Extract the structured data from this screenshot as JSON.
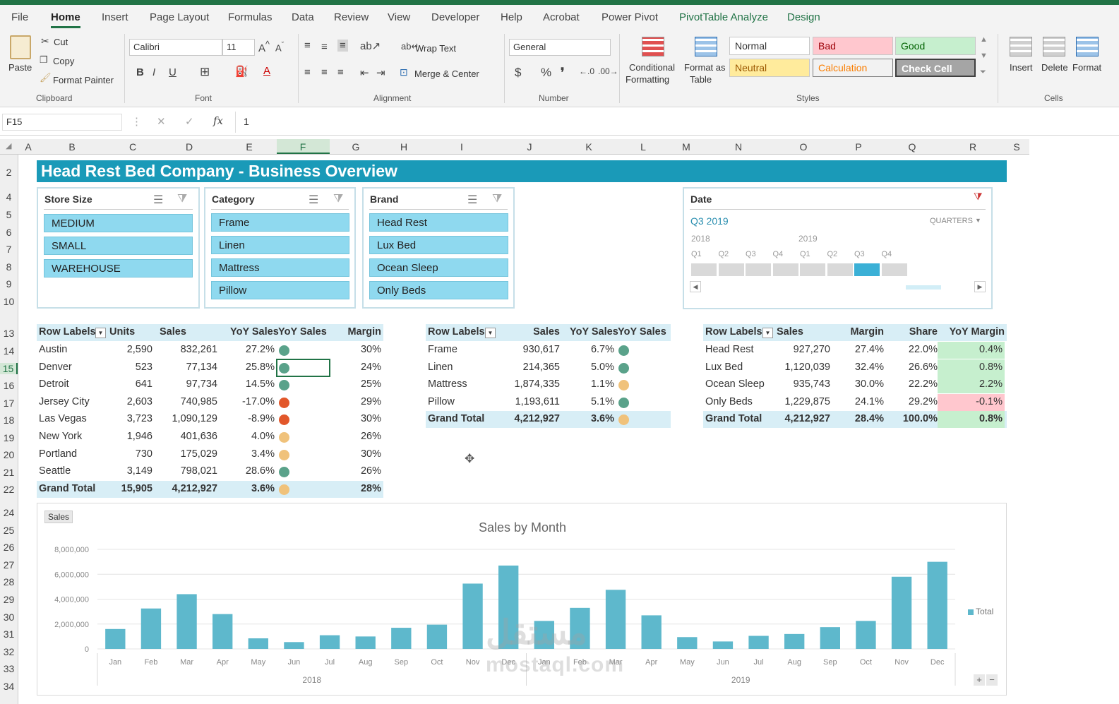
{
  "ribbon_tabs": [
    "File",
    "Home",
    "Insert",
    "Page Layout",
    "Formulas",
    "Data",
    "Review",
    "View",
    "Developer",
    "Help",
    "Acrobat",
    "Power Pivot",
    "PivotTable Analyze",
    "Design"
  ],
  "clipboard": {
    "paste": "Paste",
    "cut": "Cut",
    "copy": "Copy",
    "format_painter": "Format Painter",
    "label": "Clipboard"
  },
  "font": {
    "name": "Calibri",
    "size": "11",
    "label": "Font"
  },
  "alignment": {
    "wrap": "Wrap Text",
    "merge": "Merge & Center",
    "label": "Alignment"
  },
  "number": {
    "format": "General",
    "label": "Number"
  },
  "styles": {
    "conditional": "Conditional",
    "conditional2": "Formatting",
    "format_as": "Format as",
    "table": "Table",
    "normal": "Normal",
    "bad": "Bad",
    "good": "Good",
    "neutral": "Neutral",
    "calculation": "Calculation",
    "check_cell": "Check Cell",
    "label": "Styles"
  },
  "cells": {
    "insert": "Insert",
    "delete": "Delete",
    "format": "Format",
    "label": "Cells"
  },
  "formula": {
    "name_box": "F15",
    "fx": "fx",
    "value": "1"
  },
  "columns": [
    "A",
    "B",
    "C",
    "D",
    "E",
    "F",
    "G",
    "H",
    "I",
    "J",
    "K",
    "L",
    "M",
    "N",
    "O",
    "P",
    "Q",
    "R",
    "S"
  ],
  "rows": [
    "2",
    "4",
    "5",
    "6",
    "7",
    "8",
    "9",
    "10",
    "13",
    "14",
    "15",
    "16",
    "17",
    "18",
    "19",
    "20",
    "21",
    "22",
    "24",
    "25",
    "26",
    "27",
    "28",
    "29",
    "30",
    "31",
    "32",
    "33",
    "34"
  ],
  "title": "Head Rest Bed Company - Business Overview",
  "slicers": {
    "store": {
      "title": "Store Size",
      "items": [
        "MEDIUM",
        "SMALL",
        "WAREHOUSE"
      ]
    },
    "category": {
      "title": "Category",
      "items": [
        "Frame",
        "Linen",
        "Mattress",
        "Pillow"
      ]
    },
    "brand": {
      "title": "Brand",
      "items": [
        "Head Rest",
        "Lux Bed",
        "Ocean Sleep",
        "Only Beds"
      ]
    },
    "date": {
      "title": "Date",
      "selected": "Q3 2019",
      "level": "QUARTERS",
      "years": [
        "2018",
        "2019"
      ],
      "quarters": [
        "Q1",
        "Q2",
        "Q3",
        "Q4",
        "Q1",
        "Q2",
        "Q3",
        "Q4"
      ]
    }
  },
  "pivot1": {
    "headers": [
      "Row Labels",
      "Units",
      "Sales",
      "YoY Sales",
      "YoY Sales",
      "Margin"
    ],
    "rows": [
      {
        "label": "Austin",
        "units": "2,590",
        "sales": "832,261",
        "yoy": "27.2%",
        "status": "g",
        "margin": "30%"
      },
      {
        "label": "Denver",
        "units": "523",
        "sales": "77,134",
        "yoy": "25.8%",
        "status": "g",
        "margin": "24%"
      },
      {
        "label": "Detroit",
        "units": "641",
        "sales": "97,734",
        "yoy": "14.5%",
        "status": "g",
        "margin": "25%"
      },
      {
        "label": "Jersey City",
        "units": "2,603",
        "sales": "740,985",
        "yoy": "-17.0%",
        "status": "rd",
        "margin": "29%"
      },
      {
        "label": "Las Vegas",
        "units": "3,723",
        "sales": "1,090,129",
        "yoy": "-8.9%",
        "status": "rd",
        "margin": "30%"
      },
      {
        "label": "New York",
        "units": "1,946",
        "sales": "401,636",
        "yoy": "4.0%",
        "status": "o",
        "margin": "26%"
      },
      {
        "label": "Portland",
        "units": "730",
        "sales": "175,029",
        "yoy": "3.4%",
        "status": "o",
        "margin": "30%"
      },
      {
        "label": "Seattle",
        "units": "3,149",
        "sales": "798,021",
        "yoy": "28.6%",
        "status": "g",
        "margin": "26%"
      }
    ],
    "total": {
      "label": "Grand Total",
      "units": "15,905",
      "sales": "4,212,927",
      "yoy": "3.6%",
      "status": "o",
      "margin": "28%"
    }
  },
  "pivot2": {
    "headers": [
      "Row Labels",
      "Sales",
      "YoY Sales",
      "YoY Sales"
    ],
    "rows": [
      {
        "label": "Frame",
        "sales": "930,617",
        "yoy": "6.7%",
        "status": "g"
      },
      {
        "label": "Linen",
        "sales": "214,365",
        "yoy": "5.0%",
        "status": "g"
      },
      {
        "label": "Mattress",
        "sales": "1,874,335",
        "yoy": "1.1%",
        "status": "o"
      },
      {
        "label": "Pillow",
        "sales": "1,193,611",
        "yoy": "5.1%",
        "status": "g"
      }
    ],
    "total": {
      "label": "Grand Total",
      "sales": "4,212,927",
      "yoy": "3.6%",
      "status": "o"
    }
  },
  "pivot3": {
    "headers": [
      "Row Labels",
      "Sales",
      "Margin",
      "Share",
      "YoY Margin"
    ],
    "rows": [
      {
        "label": "Head Rest",
        "sales": "927,270",
        "margin": "27.4%",
        "share": "22.0%",
        "yoy": "0.4%",
        "color": "#c6efce"
      },
      {
        "label": "Lux Bed",
        "sales": "1,120,039",
        "margin": "32.4%",
        "share": "26.6%",
        "yoy": "0.8%",
        "color": "#c6efce"
      },
      {
        "label": "Ocean Sleep",
        "sales": "935,743",
        "margin": "30.0%",
        "share": "22.2%",
        "yoy": "2.2%",
        "color": "#c6efce"
      },
      {
        "label": "Only Beds",
        "sales": "1,229,875",
        "margin": "24.1%",
        "share": "29.2%",
        "yoy": "-0.1%",
        "color": "#ffc7ce"
      }
    ],
    "total": {
      "label": "Grand Total",
      "sales": "4,212,927",
      "margin": "28.4%",
      "share": "100.0%",
      "yoy": "0.8%",
      "color": "#c6efce"
    }
  },
  "chart_data": {
    "type": "bar",
    "title": "Sales by Month",
    "field_button": "Sales",
    "legend": "Total",
    "categories": [
      "Jan",
      "Feb",
      "Mar",
      "Apr",
      "May",
      "Jun",
      "Jul",
      "Aug",
      "Sep",
      "Oct",
      "Nov",
      "Dec",
      "Jan",
      "Feb",
      "Mar",
      "Apr",
      "May",
      "Jun",
      "Jul",
      "Aug",
      "Sep",
      "Oct",
      "Nov",
      "Dec"
    ],
    "groups": [
      "2018",
      "2019"
    ],
    "series": [
      {
        "name": "Total",
        "values": [
          1600000,
          3250000,
          4400000,
          2800000,
          850000,
          550000,
          1100000,
          1000000,
          1700000,
          1950000,
          5250000,
          6700000,
          2250000,
          3300000,
          4750000,
          2700000,
          950000,
          600000,
          1050000,
          1200000,
          1750000,
          2250000,
          5800000,
          7000000
        ]
      }
    ],
    "ylim": [
      0,
      8000000
    ],
    "yticks": [
      "8,000,000",
      "6,000,000",
      "4,000,000",
      "2,000,000",
      "0"
    ]
  },
  "watermark": {
    "line1": "مستقل",
    "line2": "mostaql.com"
  }
}
